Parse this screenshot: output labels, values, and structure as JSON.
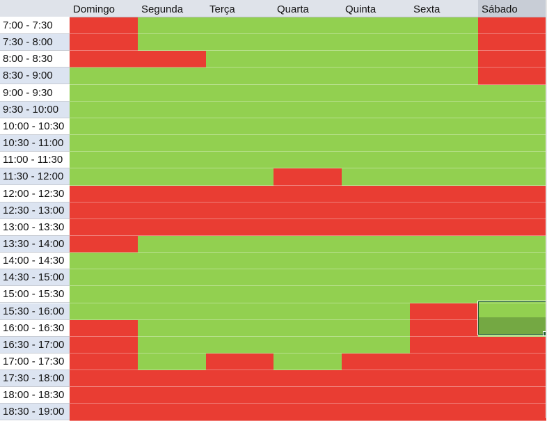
{
  "colors": {
    "available": "#92d050",
    "unavailable": "#e93d33",
    "selected_cell": "#74a843",
    "header_bg": "#dfe3ea",
    "row_header_shade": "#dce4f1"
  },
  "days": [
    "Domingo",
    "Segunda",
    "Terça",
    "Quarta",
    "Quinta",
    "Sexta",
    "Sábado"
  ],
  "time_slots": [
    "7:00 - 7:30",
    "7:30 - 8:00",
    "8:00 - 8:30",
    "8:30 - 9:00",
    "9:00 - 9:30",
    "9:30 - 10:00",
    "10:00 - 10:30",
    "10:30 - 11:00",
    "11:00 - 11:30",
    "11:30 - 12:00",
    "12:00 - 12:30",
    "12:30 - 13:00",
    "13:00 - 13:30",
    "13:30 - 14:00",
    "14:00 - 14:30",
    "14:30 - 15:00",
    "15:00 - 15:30",
    "15:30 - 16:00",
    "16:00 - 16:30",
    "16:30 - 17:00",
    "17:00 - 17:30",
    "17:30 - 18:00",
    "18:00 - 18:30",
    "18:30 - 19:00"
  ],
  "availability": [
    [
      "R",
      "G",
      "G",
      "G",
      "G",
      "G",
      "R"
    ],
    [
      "R",
      "G",
      "G",
      "G",
      "G",
      "G",
      "R"
    ],
    [
      "R",
      "R",
      "G",
      "G",
      "G",
      "G",
      "R"
    ],
    [
      "G",
      "G",
      "G",
      "G",
      "G",
      "G",
      "R"
    ],
    [
      "G",
      "G",
      "G",
      "G",
      "G",
      "G",
      "G"
    ],
    [
      "G",
      "G",
      "G",
      "G",
      "G",
      "G",
      "G"
    ],
    [
      "G",
      "G",
      "G",
      "G",
      "G",
      "G",
      "G"
    ],
    [
      "G",
      "G",
      "G",
      "G",
      "G",
      "G",
      "G"
    ],
    [
      "G",
      "G",
      "G",
      "G",
      "G",
      "G",
      "G"
    ],
    [
      "G",
      "G",
      "G",
      "R",
      "G",
      "G",
      "G"
    ],
    [
      "R",
      "R",
      "R",
      "R",
      "R",
      "R",
      "R"
    ],
    [
      "R",
      "R",
      "R",
      "R",
      "R",
      "R",
      "R"
    ],
    [
      "R",
      "R",
      "R",
      "R",
      "R",
      "R",
      "R"
    ],
    [
      "R",
      "G",
      "G",
      "G",
      "G",
      "G",
      "G"
    ],
    [
      "G",
      "G",
      "G",
      "G",
      "G",
      "G",
      "G"
    ],
    [
      "G",
      "G",
      "G",
      "G",
      "G",
      "G",
      "G"
    ],
    [
      "G",
      "G",
      "G",
      "G",
      "G",
      "G",
      "G"
    ],
    [
      "G",
      "G",
      "G",
      "G",
      "G",
      "R",
      "G"
    ],
    [
      "R",
      "G",
      "G",
      "G",
      "G",
      "R",
      "G"
    ],
    [
      "R",
      "G",
      "G",
      "G",
      "G",
      "R",
      "R"
    ],
    [
      "R",
      "G",
      "R",
      "G",
      "R",
      "R",
      "R"
    ],
    [
      "R",
      "R",
      "R",
      "R",
      "R",
      "R",
      "R"
    ],
    [
      "R",
      "R",
      "R",
      "R",
      "R",
      "R",
      "R"
    ],
    [
      "R",
      "R",
      "R",
      "R",
      "R",
      "R",
      "R"
    ]
  ]
}
